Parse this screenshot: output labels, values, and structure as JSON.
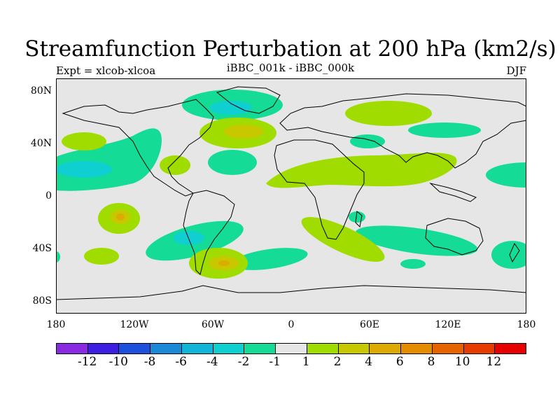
{
  "title": "Streamfunction Perturbation at 200 hPa (km2/s)",
  "left_subtitle": "Expt = xlcob-xlcoa",
  "center_subtitle": "iBBC_001k - iBBC_000k",
  "right_subtitle": "DJF",
  "map": {
    "projection": "cylindrical equidistant",
    "lat_range": [
      -90,
      90
    ],
    "lon_range": [
      -180,
      180
    ],
    "lat_labels": [
      "80N",
      "40N",
      "0",
      "40S",
      "80S"
    ],
    "lon_labels": [
      "180",
      "120W",
      "60W",
      "0",
      "60E",
      "120E",
      "180"
    ],
    "background_color": "#e6e6e6",
    "coastline_color": "#000000"
  },
  "colorbar": {
    "colors": [
      "#8a2be2",
      "#3c1fe0",
      "#1e50dc",
      "#1a8ad8",
      "#12b4d8",
      "#0fcfd0",
      "#14dc96",
      "#e6e6e6",
      "#a0dc00",
      "#c8c800",
      "#dcaa00",
      "#e68c00",
      "#e66400",
      "#e63c00",
      "#e60000"
    ],
    "labels": [
      "-12",
      "-10",
      "-8",
      "-6",
      "-4",
      "-2",
      "-1",
      "1",
      "2",
      "4",
      "6",
      "8",
      "10",
      "12"
    ]
  }
}
